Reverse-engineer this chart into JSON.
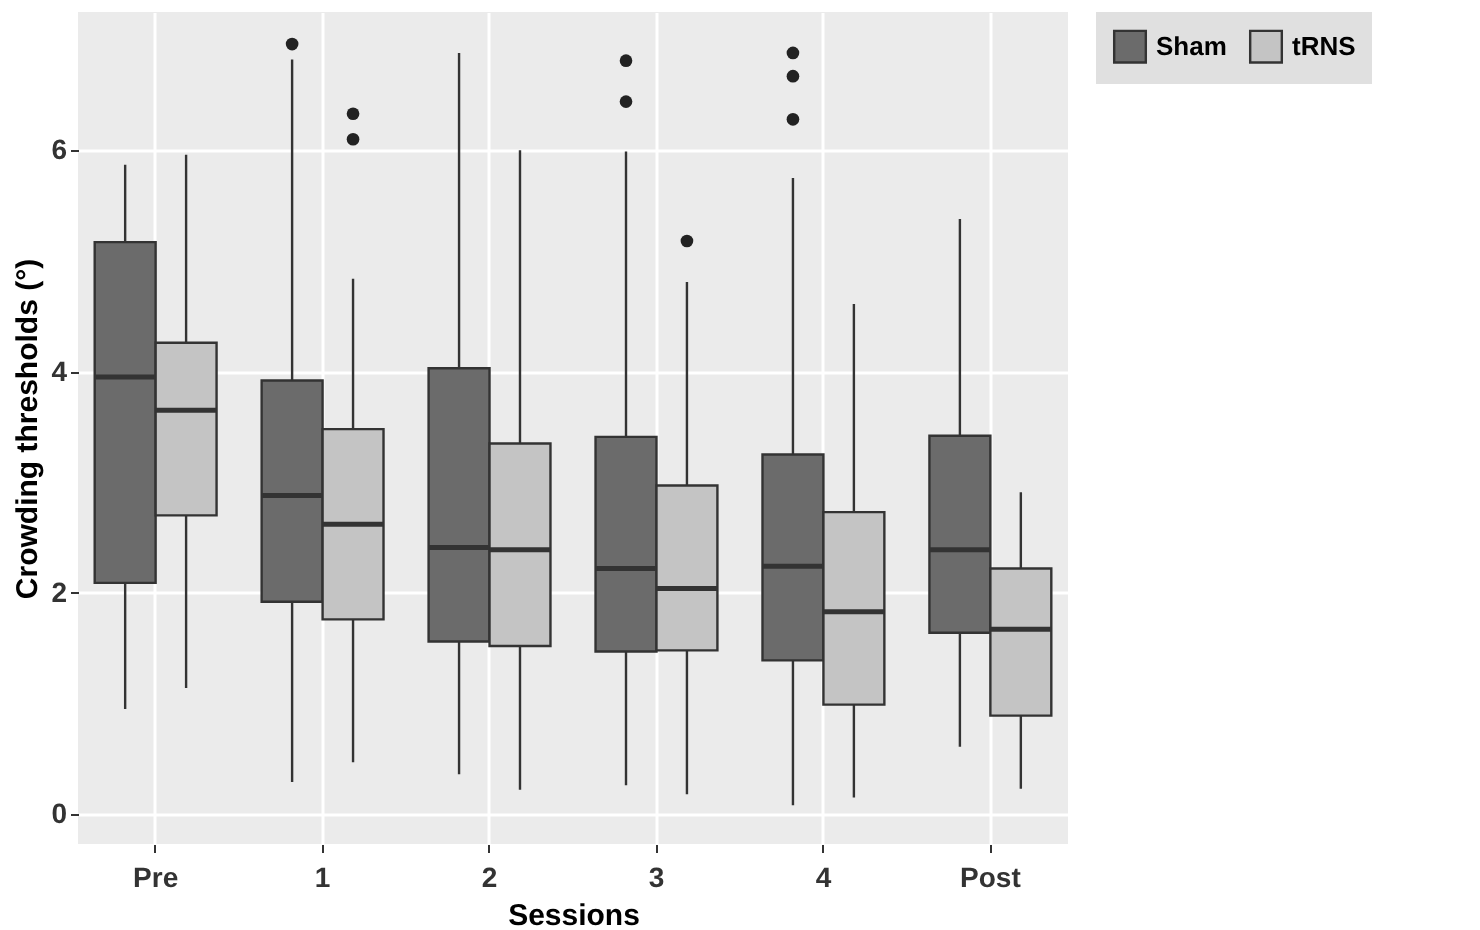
{
  "chart_data": {
    "type": "box",
    "xlabel": "Sessions",
    "ylabel": "Crowding thresholds (°)",
    "categories": [
      "Pre",
      "1",
      "2",
      "3",
      "4",
      "Post"
    ],
    "ylim": [
      -0.27,
      7.25
    ],
    "yticks": [
      0,
      2,
      4,
      6
    ],
    "grid": true,
    "legend": "right",
    "series": [
      {
        "name": "Sham",
        "color": "#6b6b6b",
        "boxes": [
          {
            "low": 0.95,
            "q1": 2.09,
            "median": 3.95,
            "q3": 5.17,
            "high": 5.87
          },
          {
            "low": 0.29,
            "q1": 1.92,
            "median": 2.88,
            "q3": 3.92,
            "high": 6.82,
            "outliers": [
              6.96
            ]
          },
          {
            "low": 0.36,
            "q1": 1.56,
            "median": 2.41,
            "q3": 4.03,
            "high": 6.88
          },
          {
            "low": 0.26,
            "q1": 1.47,
            "median": 2.22,
            "q3": 3.41,
            "high": 5.99,
            "outliers": [
              6.81,
              6.44
            ]
          },
          {
            "low": 0.08,
            "q1": 1.39,
            "median": 2.24,
            "q3": 3.25,
            "high": 5.75,
            "outliers": [
              6.88,
              6.67,
              6.28
            ]
          },
          {
            "low": 0.61,
            "q1": 1.64,
            "median": 2.39,
            "q3": 3.42,
            "high": 5.38
          }
        ]
      },
      {
        "name": "tRNS",
        "color": "#c4c4c4",
        "boxes": [
          {
            "low": 1.14,
            "q1": 2.7,
            "median": 3.65,
            "q3": 4.26,
            "high": 5.96
          },
          {
            "low": 0.47,
            "q1": 1.76,
            "median": 2.62,
            "q3": 3.48,
            "high": 4.84,
            "outliers": [
              6.33,
              6.1
            ]
          },
          {
            "low": 0.22,
            "q1": 1.52,
            "median": 2.39,
            "q3": 3.35,
            "high": 6.0
          },
          {
            "low": 0.18,
            "q1": 1.48,
            "median": 2.04,
            "q3": 2.97,
            "high": 4.81,
            "outliers": [
              5.18
            ]
          },
          {
            "low": 0.15,
            "q1": 0.99,
            "median": 1.83,
            "q3": 2.73,
            "high": 4.61
          },
          {
            "low": 0.23,
            "q1": 0.89,
            "median": 1.67,
            "q3": 2.22,
            "high": 2.91
          }
        ]
      }
    ]
  }
}
